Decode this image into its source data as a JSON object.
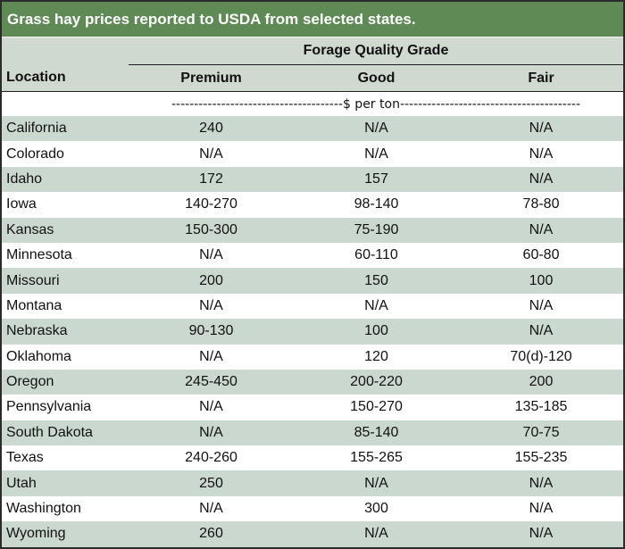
{
  "title": "Grass hay prices reported to USDA from selected states.",
  "group_header": "Forage Quality Grade",
  "columns": {
    "location": "Location",
    "premium": "Premium",
    "good": "Good",
    "fair": "Fair"
  },
  "unit_row": "--------------------------------------$ per ton----------------------------------------",
  "rows": [
    {
      "location": "California",
      "premium": "240",
      "good": "N/A",
      "fair": "N/A"
    },
    {
      "location": "Colorado",
      "premium": "N/A",
      "good": "N/A",
      "fair": "N/A"
    },
    {
      "location": "Idaho",
      "premium": "172",
      "good": "157",
      "fair": "N/A"
    },
    {
      "location": "Iowa",
      "premium": "140-270",
      "good": "98-140",
      "fair": "78-80"
    },
    {
      "location": "Kansas",
      "premium": "150-300",
      "good": "75-190",
      "fair": "N/A"
    },
    {
      "location": "Minnesota",
      "premium": "N/A",
      "good": "60-110",
      "fair": "60-80"
    },
    {
      "location": "Missouri",
      "premium": "200",
      "good": "150",
      "fair": "100"
    },
    {
      "location": "Montana",
      "premium": "N/A",
      "good": "N/A",
      "fair": "N/A"
    },
    {
      "location": "Nebraska",
      "premium": "90-130",
      "good": "100",
      "fair": "N/A"
    },
    {
      "location": "Oklahoma",
      "premium": "N/A",
      "good": "120",
      "fair": "70(d)-120"
    },
    {
      "location": "Oregon",
      "premium": "245-450",
      "good": "200-220",
      "fair": "200"
    },
    {
      "location": "Pennsylvania",
      "premium": "N/A",
      "good": "150-270",
      "fair": "135-185"
    },
    {
      "location": "South Dakota",
      "premium": "N/A",
      "good": "85-140",
      "fair": "70-75"
    },
    {
      "location": "Texas",
      "premium": "240-260",
      "good": "155-265",
      "fair": "155-235"
    },
    {
      "location": "Utah",
      "premium": "250",
      "good": "N/A",
      "fair": "N/A"
    },
    {
      "location": "Washington",
      "premium": "N/A",
      "good": "300",
      "fair": "N/A"
    },
    {
      "location": "Wyoming",
      "premium": "260",
      "good": "N/A",
      "fair": "N/A"
    }
  ],
  "colors": {
    "title_bar": "#5f8a55",
    "header_bg": "#cfd9cf",
    "row_shade": "#cad8cf",
    "row_plain": "#ffffff"
  }
}
